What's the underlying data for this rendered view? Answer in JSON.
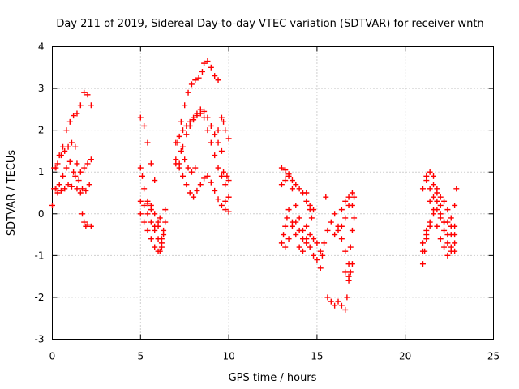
{
  "chart_data": {
    "type": "scatter",
    "title": "Day 211 of 2019, Sidereal Day-to-day VTEC variation (SDTVAR) for receiver wntn",
    "xlabel": "GPS time / hours",
    "ylabel": "SDTVAR / TECUs",
    "xlim": [
      0,
      25
    ],
    "ylim": [
      -3,
      4
    ],
    "xticks": [
      0,
      5,
      10,
      15,
      20,
      25
    ],
    "yticks": [
      -3,
      -2,
      -1,
      0,
      1,
      2,
      3,
      4
    ],
    "grid": true,
    "marker": "+",
    "color": "#ff0000",
    "series": [
      {
        "points": [
          [
            0.0,
            0.2
          ],
          [
            0.1,
            0.6
          ],
          [
            0.2,
            1.1
          ],
          [
            0.4,
            1.4
          ],
          [
            0.6,
            1.6
          ],
          [
            0.8,
            2.0
          ],
          [
            1.0,
            2.2
          ],
          [
            1.2,
            2.35
          ],
          [
            1.4,
            2.4
          ],
          [
            1.6,
            2.6
          ],
          [
            1.8,
            2.9
          ],
          [
            2.0,
            2.85
          ],
          [
            2.2,
            2.6
          ],
          [
            0.1,
            1.1
          ],
          [
            0.3,
            1.2
          ],
          [
            0.5,
            1.4
          ],
          [
            0.7,
            1.5
          ],
          [
            0.9,
            1.6
          ],
          [
            1.1,
            1.7
          ],
          [
            1.3,
            1.6
          ],
          [
            1.4,
            1.2
          ],
          [
            1.6,
            1.0
          ],
          [
            1.8,
            1.1
          ],
          [
            2.0,
            1.2
          ],
          [
            2.2,
            1.3
          ],
          [
            0.2,
            0.6
          ],
          [
            0.4,
            0.7
          ],
          [
            0.6,
            0.9
          ],
          [
            0.8,
            1.1
          ],
          [
            1.0,
            1.25
          ],
          [
            1.2,
            1.0
          ],
          [
            1.4,
            0.6
          ],
          [
            1.6,
            0.5
          ],
          [
            1.7,
            0.0
          ],
          [
            1.8,
            -0.2
          ],
          [
            1.9,
            -0.3
          ],
          [
            2.0,
            -0.25
          ],
          [
            2.2,
            -0.3
          ],
          [
            0.3,
            0.5
          ],
          [
            0.5,
            0.55
          ],
          [
            0.7,
            0.6
          ],
          [
            0.9,
            0.7
          ],
          [
            1.1,
            0.65
          ],
          [
            1.3,
            0.9
          ],
          [
            1.5,
            0.8
          ],
          [
            1.7,
            0.6
          ],
          [
            1.9,
            0.55
          ],
          [
            2.1,
            0.7
          ],
          [
            5.0,
            2.3
          ],
          [
            5.2,
            2.1
          ],
          [
            5.4,
            1.7
          ],
          [
            5.6,
            1.2
          ],
          [
            5.8,
            0.8
          ],
          [
            5.0,
            1.1
          ],
          [
            5.1,
            0.9
          ],
          [
            5.2,
            0.6
          ],
          [
            5.4,
            0.3
          ],
          [
            5.6,
            0.1
          ],
          [
            5.8,
            -0.3
          ],
          [
            6.0,
            -0.6
          ],
          [
            6.1,
            -0.9
          ],
          [
            6.2,
            -0.8
          ],
          [
            6.3,
            -0.5
          ],
          [
            6.4,
            -0.2
          ],
          [
            6.4,
            0.1
          ],
          [
            5.0,
            0.3
          ],
          [
            5.2,
            0.2
          ],
          [
            5.4,
            0.0
          ],
          [
            5.6,
            -0.2
          ],
          [
            5.8,
            -0.4
          ],
          [
            6.0,
            -0.3
          ],
          [
            6.2,
            -0.6
          ],
          [
            6.3,
            -0.4
          ],
          [
            5.0,
            0.0
          ],
          [
            5.2,
            -0.2
          ],
          [
            5.4,
            -0.4
          ],
          [
            5.6,
            -0.6
          ],
          [
            5.8,
            -0.8
          ],
          [
            6.0,
            -0.9
          ],
          [
            6.2,
            -0.7
          ],
          [
            5.4,
            0.25
          ],
          [
            5.6,
            0.2
          ],
          [
            5.8,
            0.0
          ],
          [
            6.0,
            -0.2
          ],
          [
            6.1,
            -0.1
          ],
          [
            7.0,
            1.2
          ],
          [
            7.1,
            1.7
          ],
          [
            7.3,
            2.2
          ],
          [
            7.5,
            2.6
          ],
          [
            7.7,
            2.9
          ],
          [
            7.9,
            3.1
          ],
          [
            8.1,
            3.2
          ],
          [
            8.3,
            3.25
          ],
          [
            8.5,
            3.4
          ],
          [
            8.6,
            3.6
          ],
          [
            8.8,
            3.65
          ],
          [
            9.0,
            3.5
          ],
          [
            9.2,
            3.3
          ],
          [
            9.4,
            3.2
          ],
          [
            7.0,
            1.7
          ],
          [
            7.2,
            1.85
          ],
          [
            7.4,
            2.0
          ],
          [
            7.6,
            2.1
          ],
          [
            7.8,
            2.2
          ],
          [
            8.0,
            2.3
          ],
          [
            8.2,
            2.35
          ],
          [
            8.4,
            2.4
          ],
          [
            8.6,
            2.45
          ],
          [
            8.8,
            2.3
          ],
          [
            9.0,
            2.1
          ],
          [
            9.2,
            1.9
          ],
          [
            9.4,
            1.7
          ],
          [
            9.6,
            1.5
          ],
          [
            7.2,
            1.2
          ],
          [
            7.4,
            1.6
          ],
          [
            7.6,
            1.9
          ],
          [
            7.8,
            2.1
          ],
          [
            8.0,
            2.25
          ],
          [
            8.2,
            2.4
          ],
          [
            8.4,
            2.5
          ],
          [
            8.6,
            2.3
          ],
          [
            8.8,
            2.0
          ],
          [
            9.0,
            1.7
          ],
          [
            9.2,
            1.4
          ],
          [
            9.4,
            1.1
          ],
          [
            9.6,
            0.9
          ],
          [
            9.8,
            0.7
          ],
          [
            10.0,
            0.4
          ],
          [
            7.0,
            1.3
          ],
          [
            7.2,
            1.1
          ],
          [
            7.4,
            0.9
          ],
          [
            7.6,
            0.7
          ],
          [
            7.8,
            0.5
          ],
          [
            8.0,
            0.4
          ],
          [
            8.2,
            0.55
          ],
          [
            8.4,
            0.7
          ],
          [
            8.6,
            0.85
          ],
          [
            8.8,
            0.9
          ],
          [
            9.0,
            0.75
          ],
          [
            9.2,
            0.55
          ],
          [
            9.4,
            0.35
          ],
          [
            9.6,
            0.2
          ],
          [
            9.8,
            0.1
          ],
          [
            10.0,
            0.05
          ],
          [
            7.3,
            1.5
          ],
          [
            7.5,
            1.3
          ],
          [
            7.7,
            1.1
          ],
          [
            7.9,
            1.0
          ],
          [
            8.1,
            1.1
          ],
          [
            9.4,
            2.0
          ],
          [
            9.6,
            2.3
          ],
          [
            9.7,
            2.2
          ],
          [
            9.8,
            2.0
          ],
          [
            10.0,
            1.8
          ],
          [
            9.7,
            1.0
          ],
          [
            9.9,
            0.9
          ],
          [
            10.0,
            0.8
          ],
          [
            9.8,
            0.3
          ],
          [
            10.0,
            0.4
          ],
          [
            13.0,
            1.1
          ],
          [
            13.2,
            1.05
          ],
          [
            13.4,
            0.95
          ],
          [
            13.6,
            0.8
          ],
          [
            13.8,
            0.7
          ],
          [
            14.0,
            0.6
          ],
          [
            14.2,
            0.5
          ],
          [
            14.4,
            0.3
          ],
          [
            14.6,
            0.1
          ],
          [
            14.7,
            -0.1
          ],
          [
            13.0,
            0.7
          ],
          [
            13.2,
            0.8
          ],
          [
            13.4,
            0.9
          ],
          [
            13.6,
            0.6
          ],
          [
            13.8,
            0.2
          ],
          [
            14.0,
            -0.1
          ],
          [
            14.2,
            -0.4
          ],
          [
            14.4,
            -0.6
          ],
          [
            14.6,
            -0.8
          ],
          [
            14.8,
            -1.0
          ],
          [
            13.0,
            -0.7
          ],
          [
            13.1,
            -0.5
          ],
          [
            13.2,
            -0.3
          ],
          [
            13.3,
            -0.1
          ],
          [
            13.4,
            0.1
          ],
          [
            13.6,
            -0.2
          ],
          [
            13.8,
            -0.5
          ],
          [
            14.0,
            -0.8
          ],
          [
            14.2,
            -0.9
          ],
          [
            13.2,
            -0.8
          ],
          [
            13.4,
            -0.6
          ],
          [
            13.6,
            -0.3
          ],
          [
            13.8,
            -0.2
          ],
          [
            14.0,
            -0.4
          ],
          [
            14.2,
            -0.6
          ],
          [
            14.4,
            -0.7
          ],
          [
            14.4,
            0.5
          ],
          [
            14.6,
            0.2
          ],
          [
            14.8,
            0.1
          ],
          [
            15.0,
            -0.7
          ],
          [
            15.0,
            -1.1
          ],
          [
            14.8,
            -0.6
          ],
          [
            14.6,
            -0.5
          ],
          [
            14.4,
            -0.3
          ],
          [
            15.2,
            -0.9
          ],
          [
            15.3,
            -1.0
          ],
          [
            15.4,
            -0.7
          ],
          [
            15.6,
            -0.4
          ],
          [
            15.8,
            -0.2
          ],
          [
            15.5,
            0.4
          ],
          [
            15.2,
            -1.3
          ],
          [
            15.6,
            -2.0
          ],
          [
            15.8,
            -2.1
          ],
          [
            16.0,
            -2.2
          ],
          [
            16.2,
            -2.1
          ],
          [
            16.4,
            -2.2
          ],
          [
            16.6,
            -2.3
          ],
          [
            16.7,
            -2.0
          ],
          [
            16.8,
            -1.6
          ],
          [
            16.9,
            -1.4
          ],
          [
            17.0,
            -1.2
          ],
          [
            16.0,
            -0.5
          ],
          [
            16.2,
            -0.4
          ],
          [
            16.4,
            -0.3
          ],
          [
            16.6,
            -0.1
          ],
          [
            16.8,
            0.2
          ],
          [
            17.0,
            0.5
          ],
          [
            17.1,
            0.4
          ],
          [
            16.0,
            0.0
          ],
          [
            16.2,
            -0.3
          ],
          [
            16.4,
            -0.6
          ],
          [
            16.6,
            -0.9
          ],
          [
            16.8,
            -1.2
          ],
          [
            16.9,
            -0.8
          ],
          [
            17.0,
            -0.4
          ],
          [
            16.4,
            0.1
          ],
          [
            16.6,
            0.3
          ],
          [
            16.8,
            0.4
          ],
          [
            17.0,
            0.2
          ],
          [
            17.1,
            -0.1
          ],
          [
            16.8,
            -1.5
          ],
          [
            16.6,
            -1.4
          ],
          [
            21.0,
            0.6
          ],
          [
            21.2,
            0.9
          ],
          [
            21.4,
            1.0
          ],
          [
            21.6,
            0.9
          ],
          [
            21.8,
            0.6
          ],
          [
            22.0,
            0.2
          ],
          [
            22.2,
            -0.2
          ],
          [
            22.4,
            -0.5
          ],
          [
            22.6,
            -0.8
          ],
          [
            22.8,
            -0.9
          ],
          [
            21.0,
            -0.7
          ],
          [
            21.2,
            -0.5
          ],
          [
            21.4,
            -0.2
          ],
          [
            21.6,
            0.1
          ],
          [
            21.8,
            0.3
          ],
          [
            22.0,
            0.4
          ],
          [
            22.2,
            0.3
          ],
          [
            22.4,
            0.1
          ],
          [
            22.6,
            -0.1
          ],
          [
            22.8,
            -0.3
          ],
          [
            21.0,
            -1.2
          ],
          [
            21.1,
            -0.9
          ],
          [
            21.2,
            -0.6
          ],
          [
            21.4,
            -0.3
          ],
          [
            21.6,
            0.0
          ],
          [
            21.8,
            -0.3
          ],
          [
            22.0,
            -0.6
          ],
          [
            22.2,
            -0.8
          ],
          [
            22.4,
            -1.0
          ],
          [
            22.6,
            -0.9
          ],
          [
            22.8,
            -0.7
          ],
          [
            21.2,
            0.8
          ],
          [
            21.4,
            0.6
          ],
          [
            21.6,
            0.4
          ],
          [
            21.8,
            0.1
          ],
          [
            22.0,
            -0.1
          ],
          [
            22.2,
            -0.2
          ],
          [
            22.4,
            -0.2
          ],
          [
            22.6,
            -0.3
          ],
          [
            22.8,
            -0.5
          ],
          [
            21.0,
            -0.9
          ],
          [
            21.2,
            -0.4
          ],
          [
            21.4,
            0.3
          ],
          [
            21.6,
            0.7
          ],
          [
            21.8,
            0.5
          ],
          [
            22.0,
            0.0
          ],
          [
            22.2,
            -0.4
          ],
          [
            22.4,
            -0.7
          ],
          [
            22.6,
            -0.5
          ],
          [
            22.8,
            0.2
          ],
          [
            22.9,
            0.6
          ]
        ]
      }
    ]
  }
}
